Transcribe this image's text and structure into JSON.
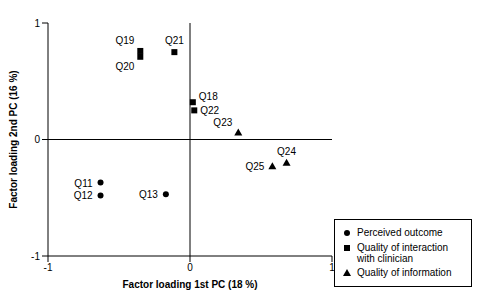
{
  "chart_data": {
    "type": "scatter",
    "x_label": "Factor loading 1st PC (18 %)",
    "y_label": "Factor loading 2nd PC (16 %)",
    "xlim": [
      -1,
      1
    ],
    "ylim": [
      -1,
      1
    ],
    "xticks": [
      -1,
      0,
      1
    ],
    "yticks": [
      -1,
      0,
      1
    ],
    "legend": "lower right",
    "series": [
      {
        "name": "Perceived outcome",
        "marker": "circle",
        "color": "#000000",
        "labels": [
          "Q11",
          "Q12",
          "Q13"
        ],
        "x": [
          -0.63,
          -0.63,
          -0.17
        ],
        "y": [
          -0.37,
          -0.48,
          -0.47
        ]
      },
      {
        "name": "Quality of interaction with clinician",
        "marker": "square",
        "color": "#000000",
        "labels": [
          "Q19",
          "Q20",
          "Q21",
          "Q18",
          "Q22"
        ],
        "x": [
          -0.35,
          -0.35,
          -0.11,
          0.02,
          0.03
        ],
        "y": [
          0.76,
          0.71,
          0.75,
          0.32,
          0.25
        ]
      },
      {
        "name": "Quality of information",
        "marker": "triangle",
        "color": "#000000",
        "labels": [
          "Q23",
          "Q24",
          "Q25"
        ],
        "x": [
          0.34,
          0.68,
          0.58
        ],
        "y": [
          0.06,
          -0.2,
          -0.23
        ]
      }
    ]
  }
}
